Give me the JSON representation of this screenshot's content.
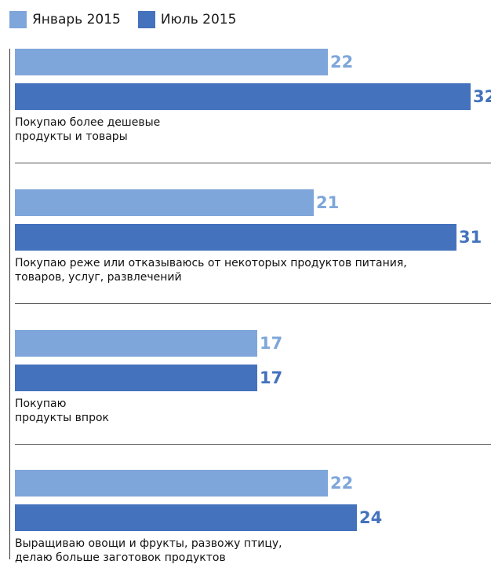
{
  "chart_data": {
    "type": "bar",
    "orientation": "horizontal",
    "title": "",
    "xlabel": "",
    "ylabel": "",
    "xlim": [
      0,
      32
    ],
    "grid": false,
    "legend_placement": "top-left",
    "categories": [
      "Покупаю более дешевые\nпродукты и товары",
      "Покупаю реже или отказываюсь от некоторых продуктов питания,\nтоваров, услуг, развлечений",
      "Покупаю\nпродукты впрок",
      "Выращиваю овощи и фрукты, развожу птицу,\nделаю больше заготовок продуктов"
    ],
    "series": [
      {
        "name": "Январь 2015",
        "color": "#7ea6da",
        "values": [
          22,
          21,
          17,
          22
        ]
      },
      {
        "name": "Июль 2015",
        "color": "#4472bd",
        "values": [
          32,
          31,
          17,
          24
        ]
      }
    ]
  }
}
